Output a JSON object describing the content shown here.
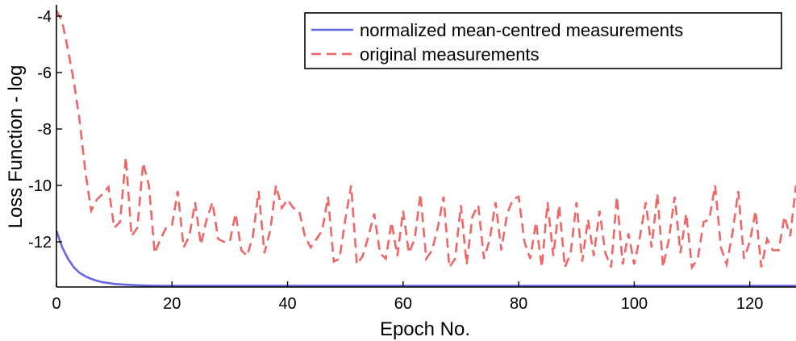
{
  "chart_data": {
    "type": "line",
    "xlabel": "Epoch No.",
    "ylabel": "Loss Function - log",
    "xlim": [
      0,
      128
    ],
    "ylim": [
      -13.6,
      -3.6
    ],
    "xticks": [
      0,
      20,
      40,
      60,
      80,
      100,
      120
    ],
    "yticks": [
      -4,
      -6,
      -8,
      -10,
      -12
    ],
    "xtick_labels": [
      "0",
      "20",
      "40",
      "60",
      "80",
      "100",
      "120"
    ],
    "ytick_labels": [
      "-4",
      "-6",
      "-8",
      "-10",
      "-12"
    ],
    "grid": false,
    "legend_position": "top-right",
    "series": [
      {
        "name": "normalized mean-centred measurements",
        "color": "#6666e0",
        "style": "solid",
        "x": [
          0,
          1,
          2,
          3,
          4,
          5,
          6,
          7,
          8,
          9,
          10,
          12,
          14,
          16,
          18,
          20,
          25,
          30,
          40,
          60,
          80,
          100,
          120,
          128
        ],
        "y": [
          -11.6,
          -12.2,
          -12.6,
          -12.9,
          -13.1,
          -13.22,
          -13.31,
          -13.38,
          -13.43,
          -13.46,
          -13.49,
          -13.52,
          -13.54,
          -13.55,
          -13.56,
          -13.56,
          -13.56,
          -13.56,
          -13.56,
          -13.56,
          -13.56,
          -13.56,
          -13.56,
          -13.56
        ]
      },
      {
        "name": "original measurements",
        "color": "#ee6666",
        "style": "dashed",
        "x": [
          0,
          1,
          2,
          3,
          4,
          5,
          6,
          7,
          8,
          9,
          10,
          11,
          12,
          13,
          14,
          15,
          16,
          17,
          18,
          19,
          20,
          21,
          22,
          23,
          24,
          25,
          26,
          27,
          28,
          29,
          30,
          31,
          32,
          33,
          34,
          35,
          36,
          37,
          38,
          39,
          40,
          41,
          42,
          43,
          44,
          45,
          46,
          47,
          48,
          49,
          50,
          51,
          52,
          53,
          54,
          55,
          56,
          57,
          58,
          59,
          60,
          61,
          62,
          63,
          64,
          65,
          66,
          67,
          68,
          69,
          70,
          71,
          72,
          73,
          74,
          75,
          76,
          77,
          78,
          79,
          80,
          81,
          82,
          83,
          84,
          85,
          86,
          87,
          88,
          89,
          90,
          91,
          92,
          93,
          94,
          95,
          96,
          97,
          98,
          99,
          100,
          101,
          102,
          103,
          104,
          105,
          106,
          107,
          108,
          109,
          110,
          111,
          112,
          113,
          114,
          115,
          116,
          117,
          118,
          119,
          120,
          121,
          122,
          123,
          124,
          125,
          126,
          127,
          128
        ],
        "y": [
          -3.8,
          -4.2,
          -5.2,
          -6.3,
          -7.7,
          -9.5,
          -10.9,
          -10.5,
          -10.3,
          -10.05,
          -11.5,
          -11.3,
          -9.0,
          -11.8,
          -11.5,
          -9.2,
          -10.0,
          -12.4,
          -11.9,
          -11.5,
          -11.4,
          -10.2,
          -12.2,
          -11.8,
          -10.6,
          -12.1,
          -11.2,
          -10.6,
          -11.9,
          -12.0,
          -12.0,
          -11.0,
          -12.3,
          -12.5,
          -11.8,
          -10.2,
          -12.4,
          -11.6,
          -10.0,
          -10.8,
          -10.5,
          -10.8,
          -10.9,
          -11.8,
          -12.2,
          -11.9,
          -11.6,
          -10.4,
          -12.7,
          -12.6,
          -11.2,
          -10.0,
          -12.8,
          -12.5,
          -11.8,
          -11.0,
          -12.4,
          -12.6,
          -11.3,
          -12.5,
          -10.9,
          -12.4,
          -11.9,
          -10.3,
          -12.6,
          -12.3,
          -11.5,
          -10.4,
          -12.9,
          -12.6,
          -10.7,
          -12.8,
          -11.1,
          -10.7,
          -12.6,
          -11.9,
          -10.6,
          -12.3,
          -11.0,
          -10.5,
          -10.4,
          -12.0,
          -12.6,
          -11.3,
          -12.9,
          -10.6,
          -12.5,
          -10.7,
          -12.9,
          -12.4,
          -10.6,
          -12.7,
          -11.2,
          -12.5,
          -10.9,
          -12.4,
          -12.9,
          -10.4,
          -12.8,
          -11.7,
          -12.8,
          -11.8,
          -10.6,
          -12.2,
          -10.3,
          -12.9,
          -11.9,
          -10.4,
          -12.4,
          -11.0,
          -12.9,
          -12.6,
          -11.3,
          -11.2,
          -10.0,
          -12.2,
          -12.8,
          -11.7,
          -10.2,
          -12.6,
          -12.0,
          -10.9,
          -12.9,
          -11.9,
          -12.3,
          -12.3,
          -11.1,
          -11.8,
          -10.0
        ]
      }
    ]
  }
}
